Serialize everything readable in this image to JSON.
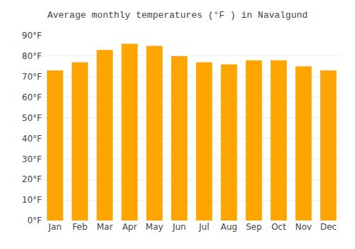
{
  "chart_data": {
    "type": "bar",
    "title": "Average monthly temperatures (°F ) in Navalgund",
    "categories": [
      "Jan",
      "Feb",
      "Mar",
      "Apr",
      "May",
      "Jun",
      "Jul",
      "Aug",
      "Sep",
      "Oct",
      "Nov",
      "Dec"
    ],
    "values": [
      73,
      77,
      83,
      86,
      85,
      80,
      77,
      76,
      78,
      78,
      75,
      73
    ],
    "color": "#FFA500",
    "ylim": [
      0,
      90
    ],
    "yticks": [
      {
        "value": 0,
        "label": "0°F"
      },
      {
        "value": 10,
        "label": "10°F"
      },
      {
        "value": 20,
        "label": "20°F"
      },
      {
        "value": 30,
        "label": "30°F"
      },
      {
        "value": 40,
        "label": "40°F"
      },
      {
        "value": 50,
        "label": "50°F"
      },
      {
        "value": 60,
        "label": "60°F"
      },
      {
        "value": 70,
        "label": "70°F"
      },
      {
        "value": 80,
        "label": "80°F"
      },
      {
        "value": 90,
        "label": "90°F"
      }
    ],
    "grid": true
  }
}
